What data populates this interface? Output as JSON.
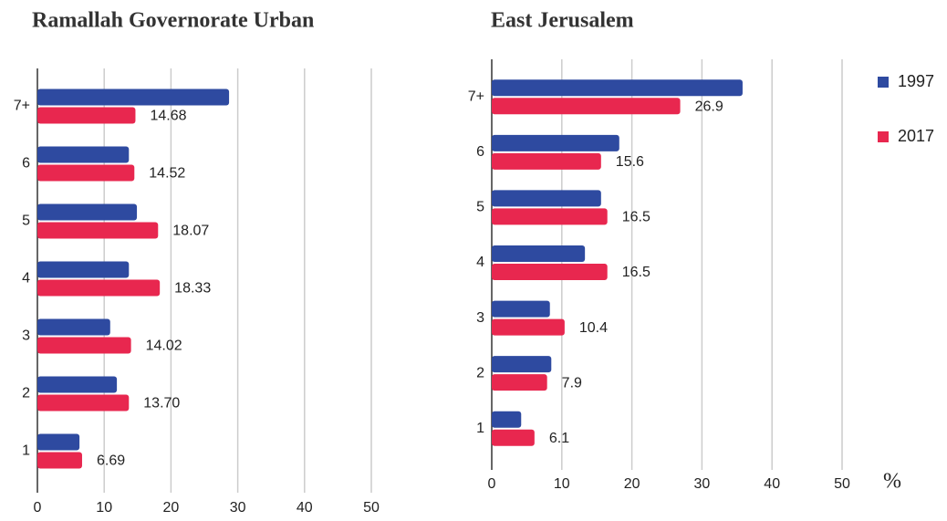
{
  "chart_data": [
    {
      "type": "bar",
      "orientation": "horizontal",
      "title": "Ramallah Governorate Urban",
      "categories": [
        "7+",
        "6",
        "5",
        "4",
        "3",
        "2",
        "1"
      ],
      "series": [
        {
          "color": "#2e4aa0",
          "values": [
            28.7,
            13.7,
            14.9,
            13.7,
            10.9,
            11.9,
            6.3
          ]
        },
        {
          "color": "#e8274f",
          "values": [
            14.68,
            14.52,
            18.07,
            18.33,
            14.02,
            13.7,
            6.69
          ],
          "value_labels": [
            "14.68",
            "14.52",
            "18.07",
            "18.33",
            "14.02",
            "13.70",
            "6.69"
          ]
        }
      ],
      "xlim": [
        0,
        50
      ],
      "xticks": [
        0,
        10,
        20,
        30,
        40,
        50
      ],
      "grid": true
    },
    {
      "type": "bar",
      "orientation": "horizontal",
      "title": "East  Jerusalem",
      "x_label": "%",
      "categories": [
        "7+",
        "6",
        "5",
        "4",
        "3",
        "2",
        "1"
      ],
      "series": [
        {
          "name": "1997",
          "color": "#2e4aa0",
          "values": [
            35.8,
            18.2,
            15.6,
            13.3,
            8.3,
            8.5,
            4.2
          ]
        },
        {
          "name": "2017",
          "color": "#e8274f",
          "values": [
            26.9,
            15.6,
            16.5,
            16.5,
            10.4,
            7.9,
            6.1
          ]
        }
      ],
      "xlim": [
        0,
        50
      ],
      "xticks": [
        0,
        10,
        20,
        30,
        40,
        50
      ],
      "grid": true,
      "legend": "right"
    }
  ]
}
